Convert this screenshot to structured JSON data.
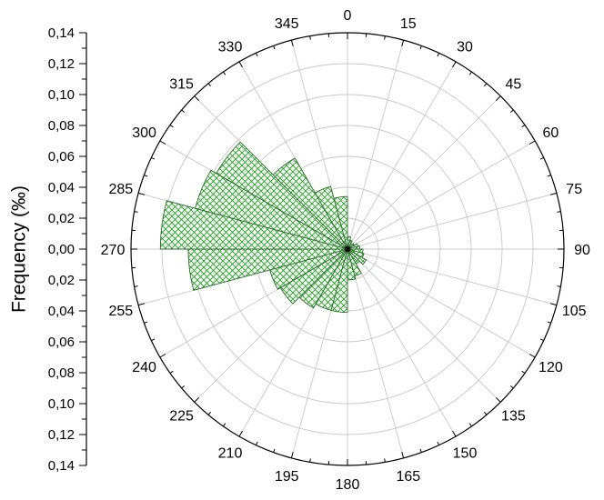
{
  "chart_data": {
    "type": "rose",
    "direction": "clockwise",
    "zero_at": "top",
    "sector_width_deg": 15,
    "sectors": [
      {
        "angle_start": 0,
        "value": 0.008
      },
      {
        "angle_start": 15,
        "value": 0.006
      },
      {
        "angle_start": 30,
        "value": 0.004
      },
      {
        "angle_start": 45,
        "value": 0.005
      },
      {
        "angle_start": 60,
        "value": 0.007
      },
      {
        "angle_start": 75,
        "value": 0.008
      },
      {
        "angle_start": 90,
        "value": 0.01
      },
      {
        "angle_start": 105,
        "value": 0.011
      },
      {
        "angle_start": 120,
        "value": 0.014
      },
      {
        "angle_start": 135,
        "value": 0.011
      },
      {
        "angle_start": 150,
        "value": 0.018
      },
      {
        "angle_start": 165,
        "value": 0.02
      },
      {
        "angle_start": 180,
        "value": 0.041
      },
      {
        "angle_start": 195,
        "value": 0.041
      },
      {
        "angle_start": 210,
        "value": 0.044
      },
      {
        "angle_start": 225,
        "value": 0.05
      },
      {
        "angle_start": 240,
        "value": 0.052
      },
      {
        "angle_start": 255,
        "value": 0.103
      },
      {
        "angle_start": 270,
        "value": 0.121
      },
      {
        "angle_start": 285,
        "value": 0.102
      },
      {
        "angle_start": 300,
        "value": 0.098
      },
      {
        "angle_start": 315,
        "value": 0.068
      },
      {
        "angle_start": 330,
        "value": 0.042
      },
      {
        "angle_start": 345,
        "value": 0.034
      }
    ],
    "rmax": 0.14,
    "grid_step": 0.02,
    "angle_labels": [
      "0",
      "15",
      "30",
      "45",
      "60",
      "75",
      "90",
      "105",
      "120",
      "135",
      "150",
      "165",
      "180",
      "195",
      "210",
      "225",
      "240",
      "255",
      "270",
      "285",
      "300",
      "315",
      "330",
      "345"
    ],
    "radial_tick_labels": [
      "0,14",
      "0,12",
      "0,10",
      "0,08",
      "0,06",
      "0,04",
      "0,02",
      "0,00",
      "0,02",
      "0,04",
      "0,06",
      "0,08",
      "0,10",
      "0,12",
      "0,14"
    ],
    "ylabel": "Frequency (‰)",
    "grid": true,
    "colors": {
      "fill_hatch": "#2e9b2e",
      "fill_bg": "#f4fbf4",
      "sector_edge": "#2a6a2a",
      "grid": "#c8c8c8",
      "axis": "#000000"
    }
  }
}
